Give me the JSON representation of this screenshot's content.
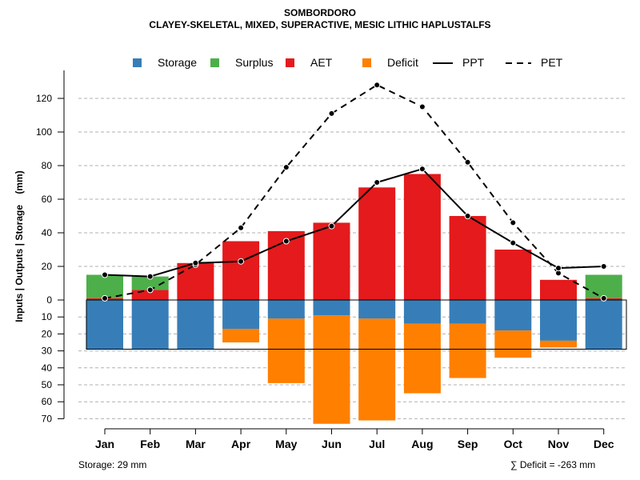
{
  "title": "SOMBORDORO",
  "subtitle": "CLAYEY-SKELETAL, MIXED, SUPERACTIVE, MESIC LITHIC HAPLUSTALFS",
  "legend": {
    "storage": "Storage",
    "surplus": "Surplus",
    "aet": "AET",
    "deficit": "Deficit",
    "ppt": "PPT",
    "pet": "PET"
  },
  "colors": {
    "storage": "#377EB8",
    "surplus": "#4DAF4A",
    "aet": "#E41A1C",
    "deficit": "#FF7F00",
    "line": "#000000",
    "grid": "#b0b0b0"
  },
  "footer": {
    "storage_text": "Storage: 29 mm",
    "deficit_text": "∑ Deficit = -263 mm"
  },
  "chart_data": {
    "type": "bar",
    "title": "SOMBORDORO",
    "subtitle": "CLAYEY-SKELETAL, MIXED, SUPERACTIVE, MESIC LITHIC HAPLUSTALFS",
    "xlabel": "",
    "ylabel": "Inputs | Outputs | Storage    (mm)",
    "categories": [
      "Jan",
      "Feb",
      "Mar",
      "Apr",
      "May",
      "Jun",
      "Jul",
      "Aug",
      "Sep",
      "Oct",
      "Nov",
      "Dec"
    ],
    "upper_ticks": [
      "0",
      "20",
      "40",
      "60",
      "80",
      "100",
      "120"
    ],
    "lower_ticks": [
      "10",
      "20",
      "30",
      "40",
      "50",
      "60",
      "70"
    ],
    "ylim_upper": [
      0,
      130
    ],
    "ylim_lower": [
      0,
      70
    ],
    "series": [
      {
        "name": "AET",
        "position": "above",
        "values": [
          1,
          6,
          22,
          35,
          41,
          46,
          67,
          75,
          50,
          30,
          12,
          1
        ]
      },
      {
        "name": "Surplus",
        "position": "above",
        "values": [
          14,
          8,
          0,
          0,
          0,
          0,
          0,
          0,
          0,
          0,
          0,
          14
        ]
      },
      {
        "name": "Storage",
        "position": "below",
        "values": [
          29,
          29,
          29,
          17,
          11,
          9,
          11,
          14,
          14,
          18,
          24,
          29
        ]
      },
      {
        "name": "Deficit",
        "position": "below",
        "values": [
          0,
          0,
          0,
          8,
          38,
          64,
          60,
          41,
          32,
          16,
          4,
          0
        ]
      },
      {
        "name": "PPT",
        "type": "line",
        "values": [
          15,
          14,
          22,
          23,
          35,
          44,
          70,
          78,
          50,
          34,
          19,
          20
        ]
      },
      {
        "name": "PET",
        "type": "line",
        "values": [
          1,
          6,
          21,
          43,
          79,
          111,
          128,
          115,
          82,
          46,
          16,
          1
        ]
      }
    ],
    "storage_capacity": 29,
    "grid": true,
    "legend_position": "top"
  }
}
